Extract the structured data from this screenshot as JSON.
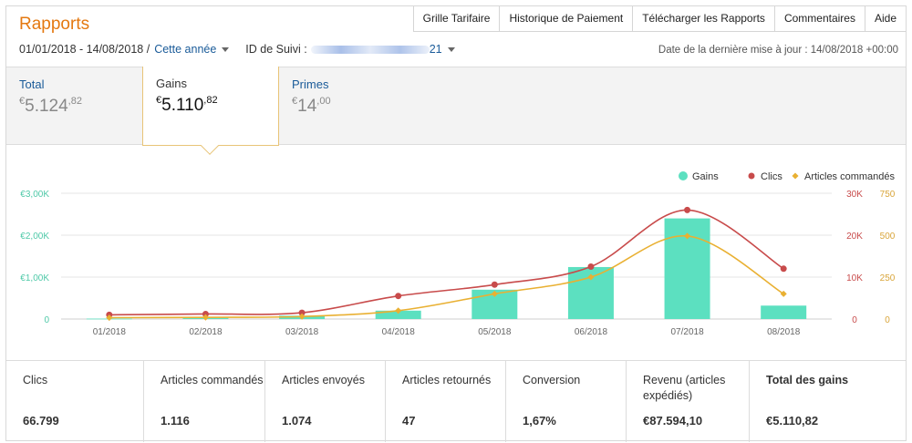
{
  "header": {
    "title": "Rapports"
  },
  "nav_tabs": [
    "Grille Tarifaire",
    "Historique de Paiement",
    "Télécharger les Rapports",
    "Commentaires",
    "Aide"
  ],
  "filters": {
    "date_range": "01/01/2018 - 14/08/2018 /",
    "period_label": "Cette année",
    "tracking_label": "ID de Suivi :",
    "tracking_suffix": "21"
  },
  "last_update": "Date de la dernière mise à jour : 14/08/2018 +00:00",
  "summary": {
    "total": {
      "label": "Total",
      "currency": "€",
      "whole": "5.124",
      "cents": ",82"
    },
    "gains": {
      "label": "Gains",
      "currency": "€",
      "whole": "5.110",
      "cents": ",82"
    },
    "primes": {
      "label": "Primes",
      "currency": "€",
      "whole": "14",
      "cents": ",00"
    }
  },
  "chart_data": {
    "type": "bar",
    "categories": [
      "01/2018",
      "02/2018",
      "03/2018",
      "04/2018",
      "05/2018",
      "06/2018",
      "07/2018",
      "08/2018"
    ],
    "series": [
      {
        "name": "Gains",
        "type": "bar",
        "axis": "left",
        "color": "#5ce0c0",
        "values": [
          10,
          30,
          80,
          200,
          700,
          1240,
          2400,
          320
        ]
      },
      {
        "name": "Clics",
        "type": "line",
        "axis": "right1",
        "color": "#c84b4b",
        "values": [
          1000,
          1200,
          1500,
          5500,
          8200,
          12500,
          26000,
          12000
        ]
      },
      {
        "name": "Articles commandés",
        "type": "line",
        "axis": "right2",
        "color": "#e9b032",
        "values": [
          8,
          10,
          15,
          50,
          150,
          250,
          495,
          150
        ]
      }
    ],
    "axes": {
      "left": {
        "ticks": [
          "0",
          "€1,00K",
          "€2,00K",
          "€3,00K"
        ],
        "ylim": [
          0,
          3000
        ],
        "color": "#4fc9a8"
      },
      "right1": {
        "ticks": [
          "0",
          "10K",
          "20K",
          "30K"
        ],
        "ylim": [
          0,
          30000
        ],
        "color": "#c84b4b"
      },
      "right2": {
        "ticks": [
          "0",
          "250",
          "500",
          "750"
        ],
        "ylim": [
          0,
          750
        ],
        "color": "#d9a53a"
      }
    },
    "legend_position": "top-right",
    "grid": true
  },
  "stats": [
    {
      "label": "Clics",
      "value": "66.799"
    },
    {
      "label": "Articles commandés",
      "value": "1.116"
    },
    {
      "label": "Articles envoyés",
      "value": "1.074"
    },
    {
      "label": "Articles retournés",
      "value": "47"
    },
    {
      "label": "Conversion",
      "value": "1,67%"
    },
    {
      "label": "Revenu (articles expédiés)",
      "value": "€87.594,10"
    },
    {
      "label": "Total des gains",
      "value": "€5.110,82",
      "bold_label": true
    }
  ]
}
